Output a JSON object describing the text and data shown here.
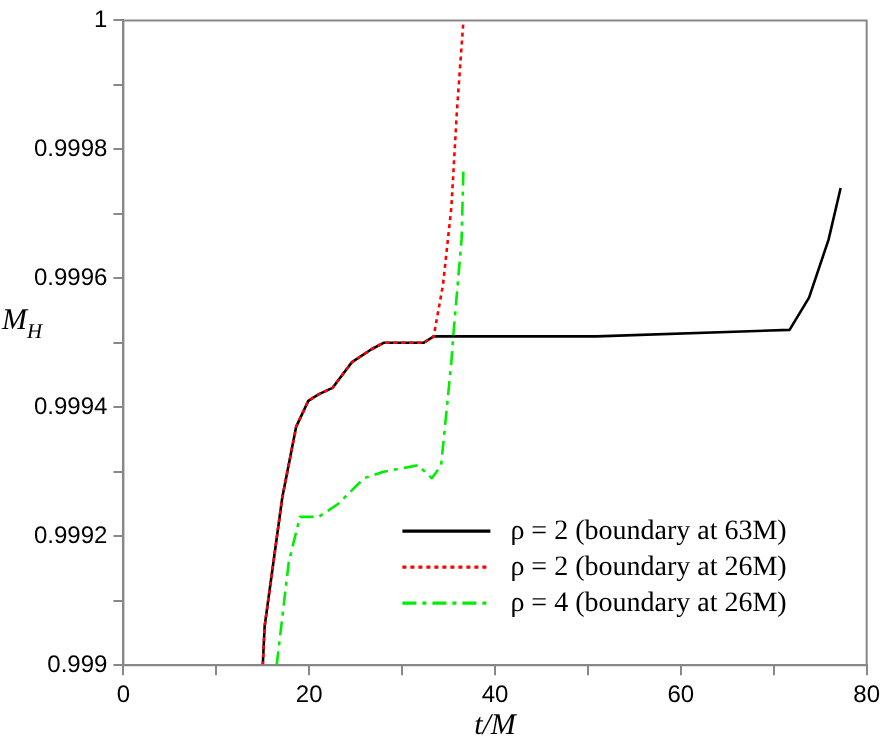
{
  "chart_data": {
    "type": "line",
    "xlabel": "t/M",
    "ylabel": "M$_{H}$",
    "xlim": [
      0,
      80
    ],
    "xticks": [
      0,
      {
        "value": 10,
        "label": null
      },
      20,
      {
        "value": 30,
        "label": null
      },
      40,
      {
        "value": 50,
        "label": null
      },
      60,
      {
        "value": 70,
        "label": null
      },
      80
    ],
    "ylim": [
      0.999,
      1
    ],
    "yticks": [
      0.999,
      {
        "value": 0.9991,
        "label": null
      },
      0.9992,
      {
        "value": 0.9993,
        "label": null
      },
      0.9994,
      {
        "value": 0.9995,
        "label": null
      },
      0.9996,
      {
        "value": 0.9997,
        "label": null
      },
      0.9998,
      {
        "value": 0.9999,
        "label": null
      },
      1
    ],
    "legend": "bottom right",
    "marker": "none",
    "series": [
      {
        "name": "ρ = 2 (boundary at 63M)",
        "color": "#000000",
        "line_style": "solid",
        "x": [
          15,
          15.2,
          17.1,
          18.6,
          19.9,
          21,
          22.5,
          24.6,
          26.7,
          28,
          32.3,
          33.4,
          35.3,
          50.9,
          71.7,
          73.8,
          75.9,
          77.2
        ],
        "values": [
          0.999,
          0.99906,
          0.99926,
          0.99937,
          0.99941,
          0.99942,
          0.99943,
          0.99947,
          0.99949,
          0.9995,
          0.9995,
          0.99951,
          0.99951,
          0.99951,
          0.99952,
          0.99957,
          0.99966,
          0.99974
        ]
      },
      {
        "name": "ρ = 2 (boundary at 26M)",
        "color": "#ff0000",
        "line_style": "dotted",
        "x": [
          15,
          15.2,
          17.1,
          18.6,
          19.9,
          21,
          22.5,
          24.6,
          26.7,
          28,
          32.3,
          33.4,
          34.4,
          35.3,
          35.9,
          36.6
        ],
        "values": [
          0.999,
          0.99906,
          0.99926,
          0.99937,
          0.99941,
          0.99942,
          0.99943,
          0.99947,
          0.99949,
          0.9995,
          0.9995,
          0.99951,
          0.99959,
          0.99971,
          0.99986,
          1
        ]
      },
      {
        "name": "ρ = 4 (boundary at 26M)",
        "color": "#00ee00",
        "line_style": "dashed",
        "x": [
          16.5,
          17.8,
          19,
          21,
          23.1,
          25.9,
          28,
          31.7,
          33.2,
          34.2,
          35.3,
          35.5,
          36.4,
          36.6
        ],
        "values": [
          0.999,
          0.99916,
          0.99923,
          0.99923,
          0.99925,
          0.99929,
          0.9993,
          0.99931,
          0.99929,
          0.99931,
          0.99947,
          0.99951,
          0.99966,
          0.99977
        ]
      }
    ]
  }
}
